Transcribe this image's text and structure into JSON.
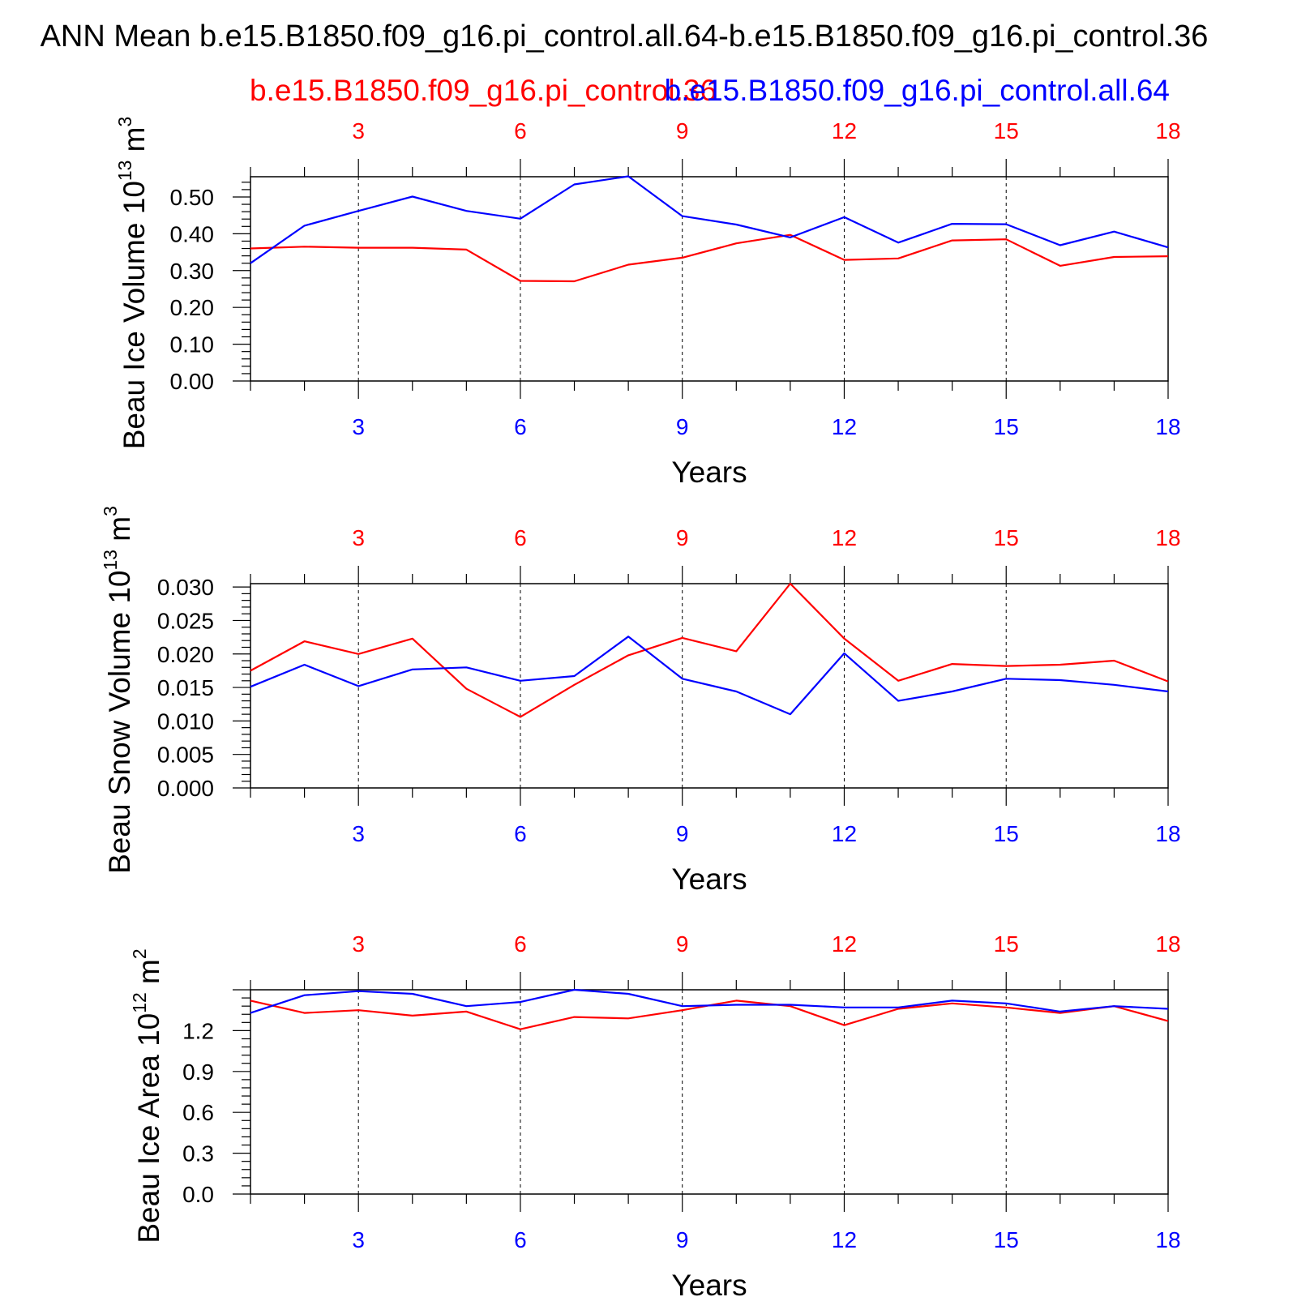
{
  "title": "ANN Mean b.e15.B1850.f09_g16.pi_control.all.64-b.e15.B1850.f09_g16.pi_control.36",
  "legend": {
    "red_label": "b.e15.B1850.f09_g16.pi_control.36",
    "blue_label": "b.e15.B1850.f09_g16.pi_control.all.64"
  },
  "colors": {
    "red": "#ff0000",
    "blue": "#0000ff",
    "axis": "#000000"
  },
  "chart_data": [
    {
      "type": "line",
      "ylabel_main": "Beau Ice Volume 10",
      "ylabel_exp": "13",
      "ylabel_unit": " m",
      "ylabel_unit_exp": "3",
      "xlabel": "Years",
      "x": [
        1,
        2,
        3,
        4,
        5,
        6,
        7,
        8,
        9,
        10,
        11,
        12,
        13,
        14,
        15,
        16,
        17,
        18
      ],
      "xlim": [
        1,
        18
      ],
      "ylim": [
        0,
        0.555
      ],
      "yticks": [
        0.0,
        0.1,
        0.2,
        0.3,
        0.4,
        0.5
      ],
      "ytick_labels": [
        "0.00",
        "0.10",
        "0.20",
        "0.30",
        "0.40",
        "0.50"
      ],
      "xticks": [
        3,
        6,
        9,
        12,
        15,
        18
      ],
      "xtick_labels": [
        "3",
        "6",
        "9",
        "12",
        "15",
        "18"
      ],
      "grid": "dashed vertical",
      "series": [
        {
          "color": "red",
          "values": [
            0.36,
            0.365,
            0.362,
            0.362,
            0.357,
            0.272,
            0.271,
            0.316,
            0.335,
            0.374,
            0.397,
            0.329,
            0.333,
            0.382,
            0.385,
            0.313,
            0.337,
            0.339
          ]
        },
        {
          "color": "blue",
          "values": [
            0.32,
            0.422,
            0.462,
            0.501,
            0.462,
            0.441,
            0.534,
            0.556,
            0.448,
            0.425,
            0.39,
            0.445,
            0.376,
            0.427,
            0.426,
            0.369,
            0.406,
            0.363
          ]
        }
      ]
    },
    {
      "type": "line",
      "ylabel_main": "Beau Snow Volume 10",
      "ylabel_exp": "13",
      "ylabel_unit": " m",
      "ylabel_unit_exp": "3",
      "xlabel": "Years",
      "x": [
        1,
        2,
        3,
        4,
        5,
        6,
        7,
        8,
        9,
        10,
        11,
        12,
        13,
        14,
        15,
        16,
        17,
        18
      ],
      "xlim": [
        1,
        18
      ],
      "ylim": [
        0,
        0.0305
      ],
      "yticks": [
        0.0,
        0.005,
        0.01,
        0.015,
        0.02,
        0.025,
        0.03
      ],
      "ytick_labels": [
        "0.000",
        "0.005",
        "0.010",
        "0.015",
        "0.020",
        "0.025",
        "0.030"
      ],
      "xticks": [
        3,
        6,
        9,
        12,
        15,
        18
      ],
      "xtick_labels": [
        "3",
        "6",
        "9",
        "12",
        "15",
        "18"
      ],
      "grid": "dashed vertical",
      "series": [
        {
          "color": "red",
          "values": [
            0.0175,
            0.0219,
            0.02,
            0.0223,
            0.0148,
            0.0106,
            0.0154,
            0.0198,
            0.0224,
            0.0204,
            0.0305,
            0.0223,
            0.016,
            0.0185,
            0.0182,
            0.0184,
            0.019,
            0.0159
          ]
        },
        {
          "color": "blue",
          "values": [
            0.0151,
            0.0184,
            0.0152,
            0.0177,
            0.018,
            0.016,
            0.0167,
            0.0226,
            0.0163,
            0.0144,
            0.011,
            0.0201,
            0.013,
            0.0144,
            0.0163,
            0.0161,
            0.0154,
            0.0144
          ]
        }
      ]
    },
    {
      "type": "line",
      "ylabel_main": "Beau Ice Area 10",
      "ylabel_exp": "12",
      "ylabel_unit": " m",
      "ylabel_unit_exp": "2",
      "xlabel": "Years",
      "x": [
        1,
        2,
        3,
        4,
        5,
        6,
        7,
        8,
        9,
        10,
        11,
        12,
        13,
        14,
        15,
        16,
        17,
        18
      ],
      "xlim": [
        1,
        18
      ],
      "ylim": [
        0,
        1.5
      ],
      "yticks": [
        0.0,
        0.3,
        0.6,
        0.9,
        1.2
      ],
      "ytick_labels": [
        "0.0",
        "0.3",
        "0.6",
        "0.9",
        "1.2"
      ],
      "xticks": [
        3,
        6,
        9,
        12,
        15,
        18
      ],
      "xtick_labels": [
        "3",
        "6",
        "9",
        "12",
        "15",
        "18"
      ],
      "grid": "dashed vertical",
      "series": [
        {
          "color": "red",
          "values": [
            1.42,
            1.33,
            1.35,
            1.31,
            1.34,
            1.21,
            1.3,
            1.29,
            1.35,
            1.42,
            1.38,
            1.24,
            1.36,
            1.4,
            1.37,
            1.33,
            1.38,
            1.27
          ]
        },
        {
          "color": "blue",
          "values": [
            1.33,
            1.46,
            1.49,
            1.47,
            1.38,
            1.41,
            1.5,
            1.47,
            1.38,
            1.39,
            1.39,
            1.37,
            1.37,
            1.42,
            1.4,
            1.34,
            1.38,
            1.36
          ]
        }
      ]
    }
  ]
}
